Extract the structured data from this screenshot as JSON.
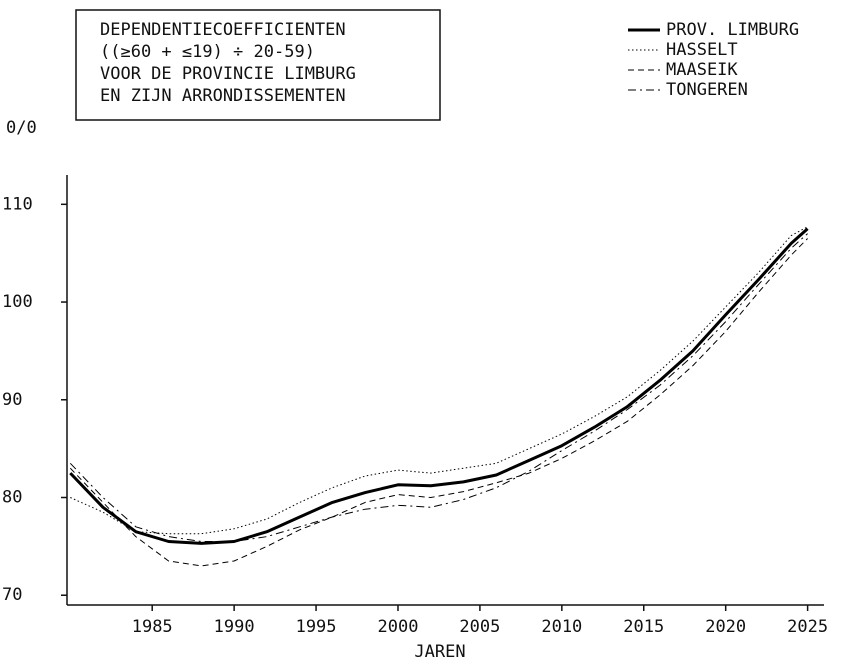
{
  "chart_data": {
    "type": "line",
    "title": [
      "DEPENDENTIECOEFFICIENTEN",
      "((≥60 + ≤19) ÷ 20-59)",
      "VOOR DE PROVINCIE LIMBURG",
      "EN ZIJN ARRONDISSEMENTEN"
    ],
    "y_label": "0/0",
    "x_label": "JAREN",
    "x": [
      1980,
      1982,
      1984,
      1986,
      1988,
      1990,
      1992,
      1994,
      1996,
      1998,
      2000,
      2002,
      2004,
      2006,
      2008,
      2010,
      2012,
      2014,
      2016,
      2018,
      2020,
      2022,
      2024,
      2025
    ],
    "series": [
      {
        "name": "PROV. LIMBURG",
        "color": "#000000",
        "style": "solid",
        "linewidth": 3,
        "values": [
          82.5,
          79,
          76.5,
          75.5,
          75.3,
          75.5,
          76.5,
          78,
          79.5,
          80.5,
          81.3,
          81.2,
          81.6,
          82.3,
          83.8,
          85.3,
          87.2,
          89.3,
          92,
          95,
          98.7,
          102.3,
          106,
          107.5
        ]
      },
      {
        "name": "HASSELT",
        "color": "#000000",
        "style": "dotted",
        "linewidth": 1,
        "values": [
          80,
          78.5,
          76.5,
          76.3,
          76.3,
          76.8,
          77.8,
          79.5,
          81,
          82.2,
          82.8,
          82.5,
          83,
          83.5,
          85,
          86.5,
          88.3,
          90.3,
          93,
          96,
          99.5,
          103,
          106.8,
          107.7
        ]
      },
      {
        "name": "MAASEIK",
        "color": "#000000",
        "style": "dashed",
        "linewidth": 1,
        "values": [
          83,
          79.5,
          76,
          73.5,
          73,
          73.5,
          75,
          76.7,
          78,
          79.5,
          80.3,
          80,
          80.6,
          81.5,
          82.5,
          84,
          85.8,
          87.8,
          90.5,
          93.5,
          97,
          101,
          104.8,
          106.5
        ]
      },
      {
        "name": "TONGEREN",
        "color": "#000000",
        "style": "dashdot",
        "linewidth": 1,
        "values": [
          83.5,
          80,
          77,
          76,
          75.5,
          75.5,
          76,
          77,
          78,
          78.8,
          79.2,
          79,
          79.8,
          81,
          82.7,
          84.8,
          86.8,
          89,
          91.5,
          94.5,
          98,
          101.8,
          105.5,
          107
        ]
      }
    ],
    "xlim": [
      1979.8,
      2026
    ],
    "xticks": [
      1985,
      1990,
      1995,
      2000,
      2005,
      2010,
      2015,
      2020,
      2025
    ],
    "ylim": [
      69,
      113
    ],
    "yticks": [
      70,
      80,
      90,
      100,
      110
    ],
    "legend": "top-right",
    "grid": false
  }
}
